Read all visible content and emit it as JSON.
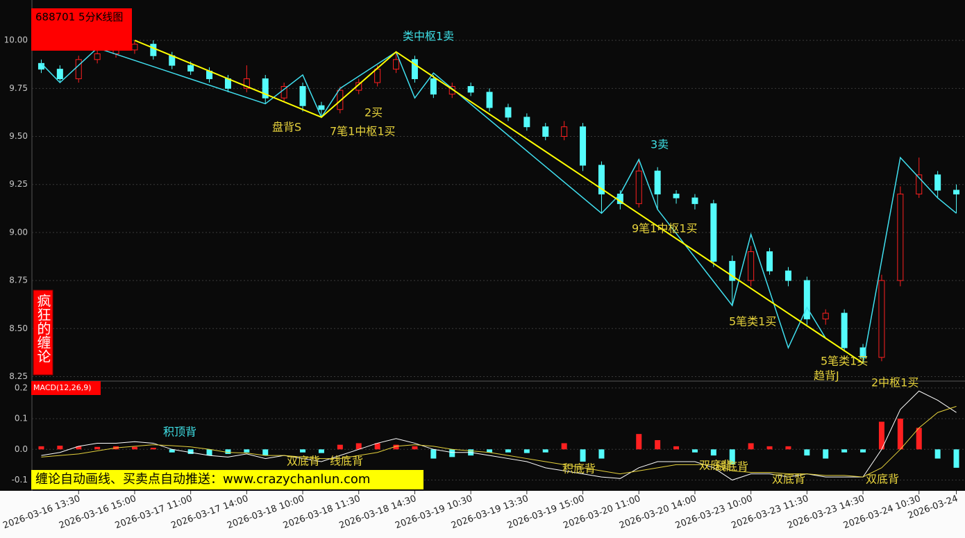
{
  "chart_data": [
    {
      "type": "candlestick",
      "title": "688701 5分K线图",
      "categories": [
        null,
        null,
        "2026-03-16 13:30",
        null,
        null,
        "2026-03-16 15:00",
        null,
        null,
        "2026-03-17 11:00",
        null,
        null,
        "2026-03-17 14:00",
        null,
        null,
        "2026-03-18 10:00",
        null,
        null,
        "2026-03-18 11:30",
        null,
        null,
        "2026-03-18 14:30",
        null,
        null,
        "2026-03-19 10:30",
        null,
        null,
        "2026-03-19 13:30",
        null,
        null,
        "2026-03-19 15:00",
        null,
        null,
        "2026-03-20 11:00",
        null,
        null,
        "2026-03-20 14:00",
        null,
        null,
        "2026-03-23 10:00",
        null,
        null,
        "2026-03-23 11:30",
        null,
        null,
        "2026-03-23 14:30",
        null,
        null,
        "2026-03-24 10:30",
        null,
        "2026-03-24"
      ],
      "open": [
        9.88,
        9.85,
        9.8,
        9.9,
        9.93,
        9.95,
        9.98,
        9.92,
        9.87,
        9.84,
        9.8,
        9.75,
        9.8,
        9.7,
        9.76,
        9.66,
        9.64,
        9.74,
        9.78,
        9.85,
        9.9,
        9.8,
        9.72,
        9.76,
        9.73,
        9.65,
        9.6,
        9.55,
        9.5,
        9.55,
        9.35,
        9.2,
        9.15,
        9.32,
        9.2,
        9.18,
        9.15,
        8.85,
        8.75,
        8.9,
        8.8,
        8.75,
        8.55,
        8.58,
        8.4,
        8.35,
        8.75,
        9.2,
        9.3,
        9.22
      ],
      "high": [
        9.9,
        9.87,
        9.92,
        9.95,
        9.97,
        10.0,
        10.0,
        9.94,
        9.89,
        9.86,
        9.82,
        9.87,
        9.82,
        9.78,
        9.78,
        9.68,
        9.76,
        9.8,
        9.87,
        9.94,
        9.92,
        9.82,
        9.78,
        9.78,
        9.75,
        9.67,
        9.62,
        9.57,
        9.58,
        9.57,
        9.37,
        9.22,
        9.38,
        9.34,
        9.22,
        9.2,
        9.17,
        8.88,
        8.93,
        8.92,
        8.82,
        8.77,
        8.6,
        8.6,
        8.42,
        8.78,
        9.24,
        9.39,
        9.32,
        9.25
      ],
      "low": [
        9.83,
        9.78,
        9.78,
        9.88,
        9.91,
        9.93,
        9.9,
        9.85,
        9.82,
        9.78,
        9.73,
        9.73,
        9.67,
        9.68,
        9.63,
        9.6,
        9.62,
        9.72,
        9.76,
        9.83,
        9.78,
        9.7,
        9.7,
        9.71,
        9.63,
        9.58,
        9.53,
        9.48,
        9.48,
        9.32,
        9.1,
        9.12,
        9.13,
        9.12,
        9.15,
        9.12,
        8.82,
        8.62,
        8.72,
        8.78,
        8.72,
        8.52,
        8.52,
        8.38,
        8.32,
        8.33,
        8.72,
        9.18,
        9.18,
        9.1
      ],
      "close": [
        9.85,
        9.8,
        9.9,
        9.93,
        9.95,
        9.98,
        9.92,
        9.87,
        9.84,
        9.8,
        9.75,
        9.8,
        9.7,
        9.76,
        9.66,
        9.64,
        9.74,
        9.78,
        9.85,
        9.9,
        9.8,
        9.72,
        9.76,
        9.73,
        9.65,
        9.6,
        9.55,
        9.5,
        9.55,
        9.35,
        9.2,
        9.15,
        9.32,
        9.2,
        9.18,
        9.15,
        8.85,
        8.75,
        8.9,
        8.8,
        8.75,
        8.55,
        8.58,
        8.4,
        8.35,
        8.75,
        9.2,
        9.3,
        9.22,
        9.2
      ],
      "up_color": "#ff2020",
      "down_color": "#54fcfc",
      "ylim": [
        8.23,
        10.21
      ],
      "yticks": [
        8.25,
        {
          "value": 8.5,
          "label": "8.50"
        },
        8.75,
        {
          "value": 9,
          "label": "9.00"
        },
        9.25,
        {
          "value": 9.5,
          "label": "9.50"
        },
        9.75,
        {
          "value": 10,
          "label": "10.00"
        }
      ],
      "grid": true,
      "strokes": [
        {
          "color": "#40e0f0",
          "x": [
            0,
            1,
            3,
            12,
            14,
            15,
            16,
            19,
            20,
            21,
            30,
            31,
            32,
            33,
            37,
            38,
            40,
            41,
            42,
            44,
            46,
            48,
            49
          ],
          "values": [
            9.88,
            9.78,
            9.96,
            9.67,
            9.82,
            9.6,
            9.75,
            9.94,
            9.7,
            9.83,
            9.1,
            9.2,
            9.38,
            9.12,
            8.62,
            8.99,
            8.4,
            8.61,
            8.45,
            8.32,
            9.39,
            9.18,
            9.1
          ]
        },
        {
          "color": "#ffff00",
          "x": [
            5,
            15,
            19,
            44
          ],
          "values": [
            10.0,
            9.6,
            9.94,
            8.32
          ]
        }
      ],
      "annotations": [
        "类中枢1卖",
        "2买",
        "盘背S",
        "7笔1中枢1买",
        "3卖",
        "9笔1中枢1买",
        "5笔类1买",
        "5笔类1买",
        "趋背J",
        "2中枢1买"
      ]
    },
    {
      "type": "macd",
      "title": "MACD(12,26,9)",
      "bars": [
        0.01,
        0.012,
        0.01,
        0.008,
        0.01,
        0.008,
        0.005,
        -0.01,
        -0.015,
        -0.02,
        -0.015,
        -0.01,
        -0.02,
        0.0,
        -0.01,
        -0.012,
        0.015,
        0.02,
        0.02,
        0.015,
        0.01,
        -0.03,
        -0.025,
        -0.02,
        -0.01,
        -0.01,
        -0.012,
        -0.01,
        0.02,
        -0.04,
        -0.03,
        0.0,
        0.05,
        0.03,
        0.01,
        -0.01,
        -0.02,
        -0.05,
        0.02,
        0.01,
        0.01,
        -0.02,
        -0.03,
        -0.01,
        -0.01,
        0.09,
        0.1,
        0.07,
        -0.03,
        -0.06
      ],
      "up_color": "#ff2020",
      "down_color": "#54fcfc",
      "series": [
        {
          "color": "#ffffff",
          "values": [
            -0.02,
            -0.01,
            0.01,
            0.02,
            0.02,
            0.025,
            0.02,
            0.0,
            -0.01,
            -0.02,
            -0.025,
            -0.015,
            -0.03,
            -0.02,
            -0.03,
            -0.04,
            -0.02,
            0.0,
            0.02,
            0.035,
            0.02,
            0.0,
            -0.01,
            -0.01,
            -0.02,
            -0.03,
            -0.04,
            -0.06,
            -0.07,
            -0.08,
            -0.09,
            -0.095,
            -0.06,
            -0.04,
            -0.04,
            -0.04,
            -0.06,
            -0.1,
            -0.08,
            -0.08,
            -0.09,
            -0.08,
            -0.09,
            -0.09,
            -0.09,
            0.0,
            0.13,
            0.19,
            0.16,
            0.12
          ]
        },
        {
          "color": "#e6d23c",
          "values": [
            -0.025,
            -0.02,
            -0.015,
            -0.005,
            0.005,
            0.01,
            0.015,
            0.012,
            0.008,
            0.0,
            -0.01,
            -0.012,
            -0.02,
            -0.02,
            -0.025,
            -0.03,
            -0.03,
            -0.02,
            -0.01,
            0.01,
            0.015,
            0.01,
            0.0,
            -0.005,
            -0.01,
            -0.02,
            -0.03,
            -0.04,
            -0.05,
            -0.06,
            -0.07,
            -0.08,
            -0.07,
            -0.06,
            -0.05,
            -0.05,
            -0.05,
            -0.07,
            -0.075,
            -0.075,
            -0.08,
            -0.08,
            -0.085,
            -0.085,
            -0.09,
            -0.06,
            0.0,
            0.07,
            0.12,
            0.14
          ]
        }
      ],
      "ylim": [
        -0.135,
        0.22
      ],
      "yticks": [
        0.2,
        0.1,
        {
          "value": 0,
          "label": "0.0"
        },
        -0.1
      ],
      "grid": true,
      "annotations": [
        "积顶背",
        "双底背",
        "线底背",
        "积底背",
        "双底背",
        "线底背",
        "双底背",
        "双底背"
      ]
    }
  ],
  "side_label": "疯狂的缠论",
  "banner": "缠论自动画线、买卖点自动推送：www.crazychanlun.com"
}
